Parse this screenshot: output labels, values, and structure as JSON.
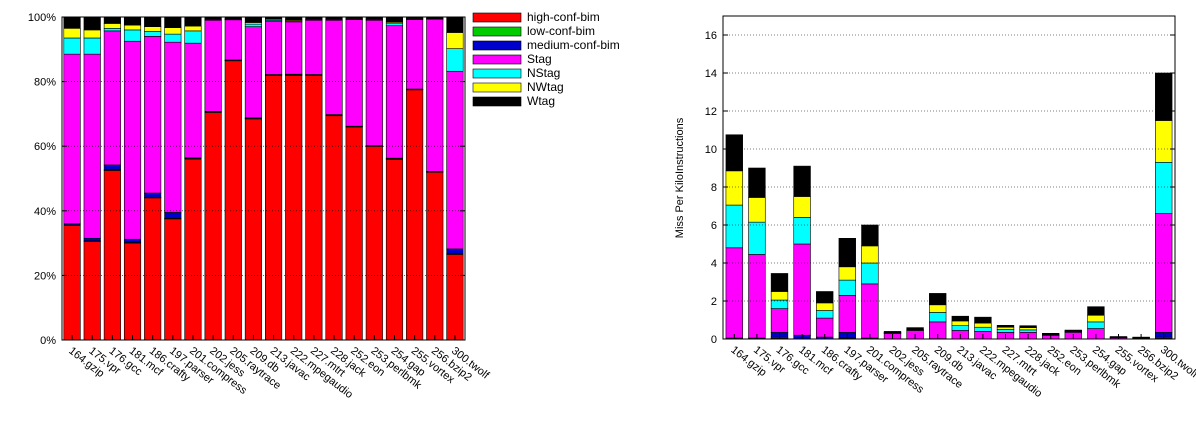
{
  "chart_data": [
    {
      "type": "bar",
      "stacked": true,
      "normalized": true,
      "grid": true,
      "legend_position": "right",
      "title": "",
      "xlabel": "",
      "ylabel": "",
      "ylim": [
        0,
        100
      ],
      "y_ticks": [
        0,
        20,
        40,
        60,
        80,
        100
      ],
      "y_tick_labels": [
        "0%",
        "20%",
        "40%",
        "60%",
        "80%",
        "100%"
      ],
      "categories": [
        "164.gzip",
        "175.vpr",
        "176.gcc",
        "181.mcf",
        "186.crafty",
        "197.parser",
        "201.compress",
        "202.jess",
        "205.raytrace",
        "209.db",
        "213.javac",
        "222.mpegaudio",
        "227.mtrt",
        "228.jack",
        "252.eon",
        "253.perlbmk",
        "254.gap",
        "255.vortex",
        "256.bzip2",
        "300.twolf"
      ],
      "series": [
        {
          "name": "high-conf-bim",
          "color": "#ff0000",
          "values": [
            35.5,
            30.5,
            52.5,
            30.0,
            44.0,
            37.5,
            56.0,
            70.5,
            86.5,
            68.5,
            82.0,
            82.0,
            82.0,
            69.5,
            66.0,
            60.0,
            56.0,
            77.5,
            52.0,
            26.5
          ]
        },
        {
          "name": "low-conf-bim",
          "color": "#00cc00",
          "values": [
            0.2,
            0.2,
            0.2,
            0.2,
            0.2,
            0.2,
            0.2,
            0.1,
            0.1,
            0.1,
            0.1,
            0.1,
            0.1,
            0.1,
            0.1,
            0.1,
            0.1,
            0.1,
            0.1,
            0.2
          ]
        },
        {
          "name": "medium-conf-bim",
          "color": "#0000cc",
          "values": [
            0.3,
            0.8,
            1.5,
            1.0,
            1.3,
            1.8,
            0.2,
            0.2,
            0.1,
            0.2,
            0.1,
            0.2,
            0.1,
            0.2,
            0.1,
            0.1,
            0.2,
            0.1,
            0.1,
            1.5
          ]
        },
        {
          "name": "Stag",
          "color": "#ff00ff",
          "values": [
            52.5,
            57.0,
            41.5,
            61.3,
            48.5,
            52.7,
            35.5,
            28.2,
            12.5,
            28.2,
            16.5,
            16.2,
            16.8,
            29.2,
            33.0,
            38.8,
            41.0,
            21.5,
            47.2,
            55.0
          ]
        },
        {
          "name": "NStag",
          "color": "#00ffff",
          "values": [
            5.0,
            5.0,
            0.8,
            3.5,
            1.5,
            2.5,
            3.8,
            0.2,
            0.1,
            0.8,
            0.3,
            0.3,
            0.2,
            0.2,
            0.2,
            0.2,
            0.8,
            0.2,
            0.1,
            7.0
          ]
        },
        {
          "name": "NWtag",
          "color": "#ffff00",
          "values": [
            3.0,
            2.5,
            1.5,
            1.5,
            1.5,
            2.0,
            1.5,
            0.2,
            0.1,
            0.5,
            0.3,
            0.3,
            0.2,
            0.2,
            0.2,
            0.2,
            0.3,
            0.2,
            0.1,
            5.0
          ]
        },
        {
          "name": "Wtag",
          "color": "#000000",
          "values": [
            3.5,
            4.0,
            2.0,
            2.5,
            3.0,
            3.3,
            2.8,
            0.6,
            0.6,
            1.7,
            0.7,
            0.9,
            0.6,
            0.6,
            0.4,
            0.6,
            1.6,
            0.4,
            0.3,
            4.8
          ]
        }
      ]
    },
    {
      "type": "bar",
      "stacked": true,
      "grid": true,
      "title": "",
      "xlabel": "",
      "ylabel": "Miss Per KiloInstructions",
      "ylim": [
        0,
        17
      ],
      "y_ticks": [
        0,
        2,
        4,
        6,
        8,
        10,
        12,
        14,
        16
      ],
      "y_tick_labels": [
        "0",
        "2",
        "4",
        "6",
        "8",
        "10",
        "12",
        "14",
        "16"
      ],
      "categories": [
        "164.gzip",
        "175.vpr",
        "176.gcc",
        "181.mcf",
        "186.crafty",
        "197.parser",
        "201.compress",
        "202.jess",
        "205.raytrace",
        "209.db",
        "213.javac",
        "222.mpegaudio",
        "227.mtrt",
        "228.jack",
        "252.eon",
        "253.perlbmk",
        "254.gap",
        "255.vortex",
        "256.bzip2",
        "300.twolf"
      ],
      "series": [
        {
          "name": "high-conf-bim",
          "color": "#ff0000",
          "values": [
            0,
            0,
            0.05,
            0,
            0,
            0,
            0,
            0,
            0,
            0,
            0,
            0,
            0,
            0,
            0,
            0,
            0,
            0,
            0,
            0.05
          ]
        },
        {
          "name": "low-conf-bim",
          "color": "#00cc00",
          "values": [
            0,
            0,
            0.05,
            0,
            0,
            0.05,
            0,
            0,
            0,
            0,
            0,
            0,
            0,
            0,
            0,
            0,
            0,
            0,
            0,
            0.05
          ]
        },
        {
          "name": "medium-conf-bim",
          "color": "#0000cc",
          "values": [
            0.05,
            0.05,
            0.25,
            0.2,
            0.1,
            0.3,
            0.05,
            0,
            0,
            0.02,
            0,
            0,
            0,
            0,
            0,
            0,
            0,
            0,
            0,
            0.25
          ]
        },
        {
          "name": "Stag",
          "color": "#ff00ff",
          "values": [
            4.75,
            4.4,
            1.25,
            4.8,
            1.0,
            1.95,
            2.85,
            0.3,
            0.45,
            0.88,
            0.45,
            0.4,
            0.35,
            0.35,
            0.2,
            0.35,
            0.55,
            0.08,
            0.06,
            6.25
          ]
        },
        {
          "name": "NStag",
          "color": "#00ffff",
          "values": [
            2.25,
            1.7,
            0.45,
            1.4,
            0.4,
            0.8,
            1.1,
            0.02,
            0.03,
            0.5,
            0.25,
            0.22,
            0.15,
            0.13,
            0.02,
            0.04,
            0.35,
            0.01,
            0.01,
            2.7
          ]
        },
        {
          "name": "NWtag",
          "color": "#ffff00",
          "values": [
            1.8,
            1.3,
            0.45,
            1.1,
            0.4,
            0.7,
            0.9,
            0.02,
            0.02,
            0.4,
            0.25,
            0.22,
            0.12,
            0.12,
            0.02,
            0.03,
            0.35,
            0.01,
            0.01,
            2.2
          ]
        },
        {
          "name": "Wtag",
          "color": "#000000",
          "values": [
            1.9,
            1.55,
            0.95,
            1.6,
            0.6,
            1.5,
            1.1,
            0.06,
            0.1,
            0.6,
            0.25,
            0.31,
            0.1,
            0.1,
            0.06,
            0.05,
            0.45,
            0.03,
            0.02,
            2.5
          ]
        }
      ]
    }
  ]
}
